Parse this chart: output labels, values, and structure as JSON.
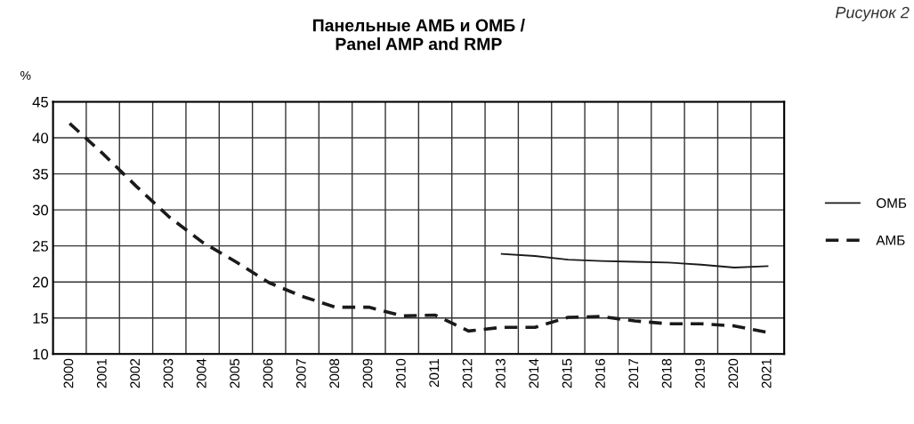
{
  "chart_data": {
    "type": "line",
    "title": "Панельные АМБ и ОМБ /\nPanel AMP and RMP",
    "ylabel": "%",
    "annotations": [
      "Рисунок 2"
    ],
    "categories": [
      "2000",
      "2001",
      "2002",
      "2003",
      "2004",
      "2005",
      "2006",
      "2007",
      "2008",
      "2009",
      "2010",
      "2011",
      "2012",
      "2013",
      "2014",
      "2015",
      "2016",
      "2017",
      "2018",
      "2019",
      "2020",
      "2021"
    ],
    "series": [
      {
        "name": "ОМБ",
        "color": "#1a1a1a",
        "line_style": "solid",
        "values": [
          null,
          null,
          null,
          null,
          null,
          null,
          null,
          null,
          null,
          null,
          null,
          null,
          null,
          23.9,
          23.6,
          23.1,
          22.9,
          22.8,
          22.7,
          22.4,
          22.0,
          22.2
        ]
      },
      {
        "name": "АМБ",
        "color": "#1a1a1a",
        "line_style": "dashed",
        "values": [
          42.0,
          37.8,
          33.3,
          29.0,
          25.5,
          22.8,
          19.9,
          18.0,
          16.5,
          16.5,
          15.3,
          15.4,
          13.2,
          13.7,
          13.7,
          15.1,
          15.2,
          14.6,
          14.2,
          14.2,
          13.9,
          13.0
        ]
      }
    ],
    "ylim": [
      10,
      45
    ],
    "yticks": [
      10,
      15,
      20,
      25,
      30,
      35,
      40,
      45
    ],
    "grid": true,
    "legend": "right",
    "marker": "none"
  }
}
